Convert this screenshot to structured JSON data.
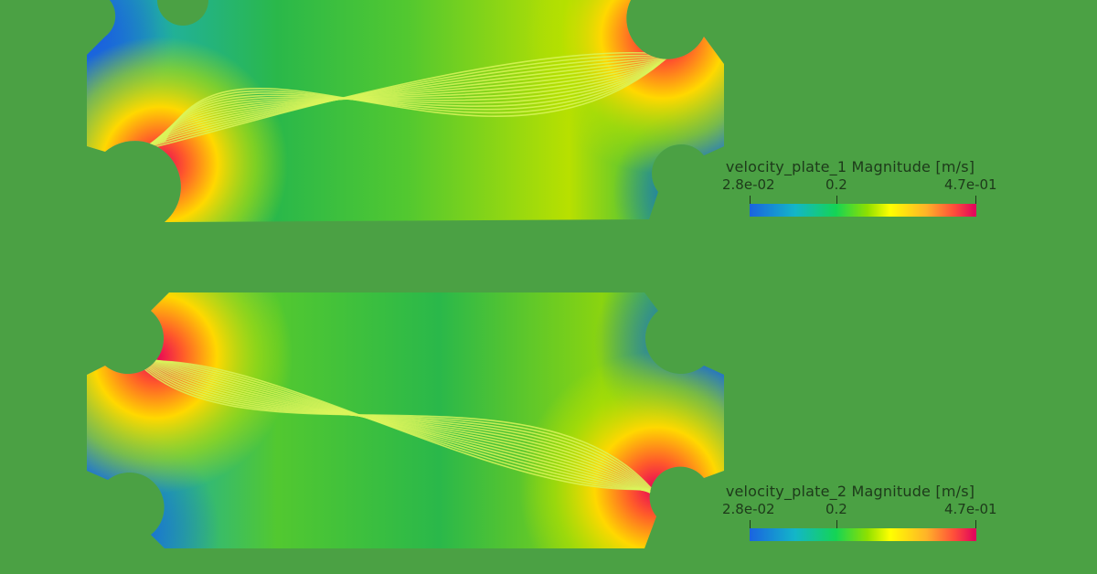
{
  "colors": {
    "background": "#4ba144",
    "low": "#1a64e0",
    "mid": "#14d455",
    "high_yellow": "#ffff00",
    "high_red": "#e0005e",
    "streamline": "#d9f55a"
  },
  "plates": [
    {
      "id": "plate_1",
      "colorbar": {
        "title": "velocity_plate_1 Magnitude  [m/s]",
        "min_label": "2.8e-02",
        "mid_label": "0.2",
        "max_label": "4.7e-01"
      }
    },
    {
      "id": "plate_2",
      "colorbar": {
        "title": "velocity_plate_2 Magnitude  [m/s]",
        "min_label": "2.8e-02",
        "mid_label": "0.2",
        "max_label": "4.7e-01"
      }
    }
  ]
}
